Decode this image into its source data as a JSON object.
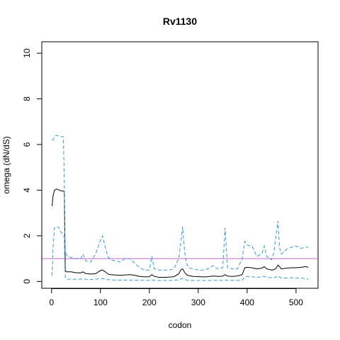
{
  "chart_data": {
    "type": "line",
    "title": "Rv1130",
    "xlabel": "codon",
    "ylabel": "omega (dN/dS)",
    "xlim": [
      -20,
      545
    ],
    "ylim": [
      -0.3,
      10.5
    ],
    "xticks": [
      0,
      100,
      200,
      300,
      400,
      500
    ],
    "yticks": [
      0,
      2,
      4,
      6,
      8,
      10
    ],
    "reference_line": {
      "y": 1,
      "color": "#cc66cc"
    },
    "grid": false,
    "colors": {
      "mean": "#000000",
      "bounds": "#3399dd"
    },
    "series": [
      {
        "style": "solid",
        "x": [
          1,
          3,
          6,
          10,
          14,
          18,
          22,
          24,
          26,
          27,
          28,
          30,
          32,
          40,
          50,
          60,
          64,
          70,
          80,
          90,
          100,
          104,
          110,
          115,
          120,
          130,
          140,
          150,
          160,
          170,
          180,
          190,
          200,
          205,
          210,
          220,
          230,
          240,
          250,
          260,
          265,
          268,
          272,
          276,
          280,
          290,
          300,
          310,
          320,
          330,
          340,
          350,
          355,
          360,
          370,
          380,
          390,
          395,
          400,
          410,
          420,
          430,
          435,
          440,
          450,
          455,
          460,
          463,
          466,
          470,
          480,
          490,
          500,
          510,
          520,
          525
        ],
        "values": [
          3.3,
          3.75,
          4.0,
          4.05,
          4.02,
          3.98,
          3.97,
          3.95,
          3.95,
          2.5,
          0.5,
          0.42,
          0.42,
          0.42,
          0.38,
          0.38,
          0.42,
          0.35,
          0.32,
          0.34,
          0.48,
          0.5,
          0.42,
          0.33,
          0.3,
          0.28,
          0.27,
          0.28,
          0.3,
          0.27,
          0.22,
          0.2,
          0.21,
          0.3,
          0.22,
          0.18,
          0.18,
          0.19,
          0.21,
          0.33,
          0.52,
          0.55,
          0.4,
          0.3,
          0.26,
          0.22,
          0.21,
          0.2,
          0.21,
          0.24,
          0.22,
          0.23,
          0.3,
          0.23,
          0.22,
          0.24,
          0.3,
          0.6,
          0.62,
          0.6,
          0.55,
          0.58,
          0.65,
          0.55,
          0.5,
          0.52,
          0.6,
          0.72,
          0.65,
          0.55,
          0.58,
          0.6,
          0.6,
          0.62,
          0.65,
          0.62
        ]
      },
      {
        "style": "dashed",
        "x": [
          1,
          3,
          6,
          10,
          14,
          18,
          22,
          24,
          26,
          27,
          28,
          30,
          32,
          40,
          50,
          60,
          64,
          70,
          80,
          90,
          100,
          104,
          110,
          115,
          120,
          130,
          140,
          150,
          160,
          170,
          180,
          190,
          200,
          205,
          210,
          220,
          230,
          240,
          250,
          260,
          265,
          268,
          272,
          276,
          280,
          290,
          300,
          310,
          320,
          330,
          340,
          350,
          355,
          360,
          370,
          380,
          390,
          395,
          400,
          410,
          420,
          430,
          435,
          440,
          450,
          455,
          460,
          463,
          466,
          470,
          480,
          490,
          500,
          510,
          520,
          525
        ],
        "values": [
          6.2,
          6.2,
          6.35,
          6.4,
          6.38,
          6.35,
          6.35,
          6.33,
          4.5,
          2.0,
          1.3,
          1.2,
          1.1,
          1.05,
          1.0,
          1.0,
          1.2,
          0.9,
          0.85,
          1.2,
          1.8,
          2.0,
          1.5,
          1.1,
          0.95,
          0.9,
          0.85,
          1.0,
          1.0,
          0.8,
          0.6,
          0.5,
          0.5,
          1.1,
          0.55,
          0.5,
          0.5,
          0.5,
          0.55,
          1.0,
          1.8,
          2.4,
          1.3,
          0.8,
          0.6,
          0.55,
          0.5,
          0.5,
          0.55,
          0.7,
          0.55,
          0.6,
          2.35,
          0.6,
          0.55,
          0.55,
          1.0,
          1.75,
          1.6,
          1.55,
          1.1,
          1.2,
          1.55,
          1.1,
          0.95,
          1.3,
          2.2,
          2.65,
          1.5,
          1.2,
          1.4,
          1.5,
          1.55,
          1.45,
          1.5,
          1.5
        ]
      },
      {
        "style": "dashed",
        "x": [
          1,
          3,
          6,
          10,
          14,
          18,
          22,
          24,
          26,
          27,
          28,
          30,
          32,
          40,
          50,
          60,
          64,
          70,
          80,
          90,
          100,
          104,
          110,
          115,
          120,
          130,
          140,
          150,
          160,
          170,
          180,
          190,
          200,
          205,
          210,
          220,
          230,
          240,
          250,
          260,
          265,
          268,
          272,
          276,
          280,
          290,
          300,
          310,
          320,
          330,
          340,
          350,
          355,
          360,
          370,
          380,
          390,
          395,
          400,
          410,
          420,
          430,
          435,
          440,
          450,
          455,
          460,
          463,
          466,
          470,
          480,
          490,
          500,
          510,
          520,
          525
        ],
        "values": [
          0.25,
          1.5,
          2.35,
          2.4,
          2.38,
          2.2,
          2.1,
          2.0,
          2.0,
          1.0,
          0.2,
          0.12,
          0.1,
          0.1,
          0.1,
          0.1,
          0.12,
          0.1,
          0.08,
          0.1,
          0.12,
          0.13,
          0.1,
          0.08,
          0.07,
          0.06,
          0.06,
          0.06,
          0.06,
          0.06,
          0.05,
          0.05,
          0.05,
          0.07,
          0.05,
          0.04,
          0.04,
          0.04,
          0.05,
          0.07,
          0.12,
          0.13,
          0.09,
          0.06,
          0.05,
          0.04,
          0.04,
          0.04,
          0.04,
          0.05,
          0.05,
          0.05,
          0.06,
          0.05,
          0.05,
          0.05,
          0.06,
          0.2,
          0.22,
          0.2,
          0.18,
          0.2,
          0.22,
          0.18,
          0.16,
          0.17,
          0.2,
          0.25,
          0.2,
          0.15,
          0.15,
          0.16,
          0.16,
          0.15,
          0.12,
          0.1
        ]
      }
    ]
  }
}
